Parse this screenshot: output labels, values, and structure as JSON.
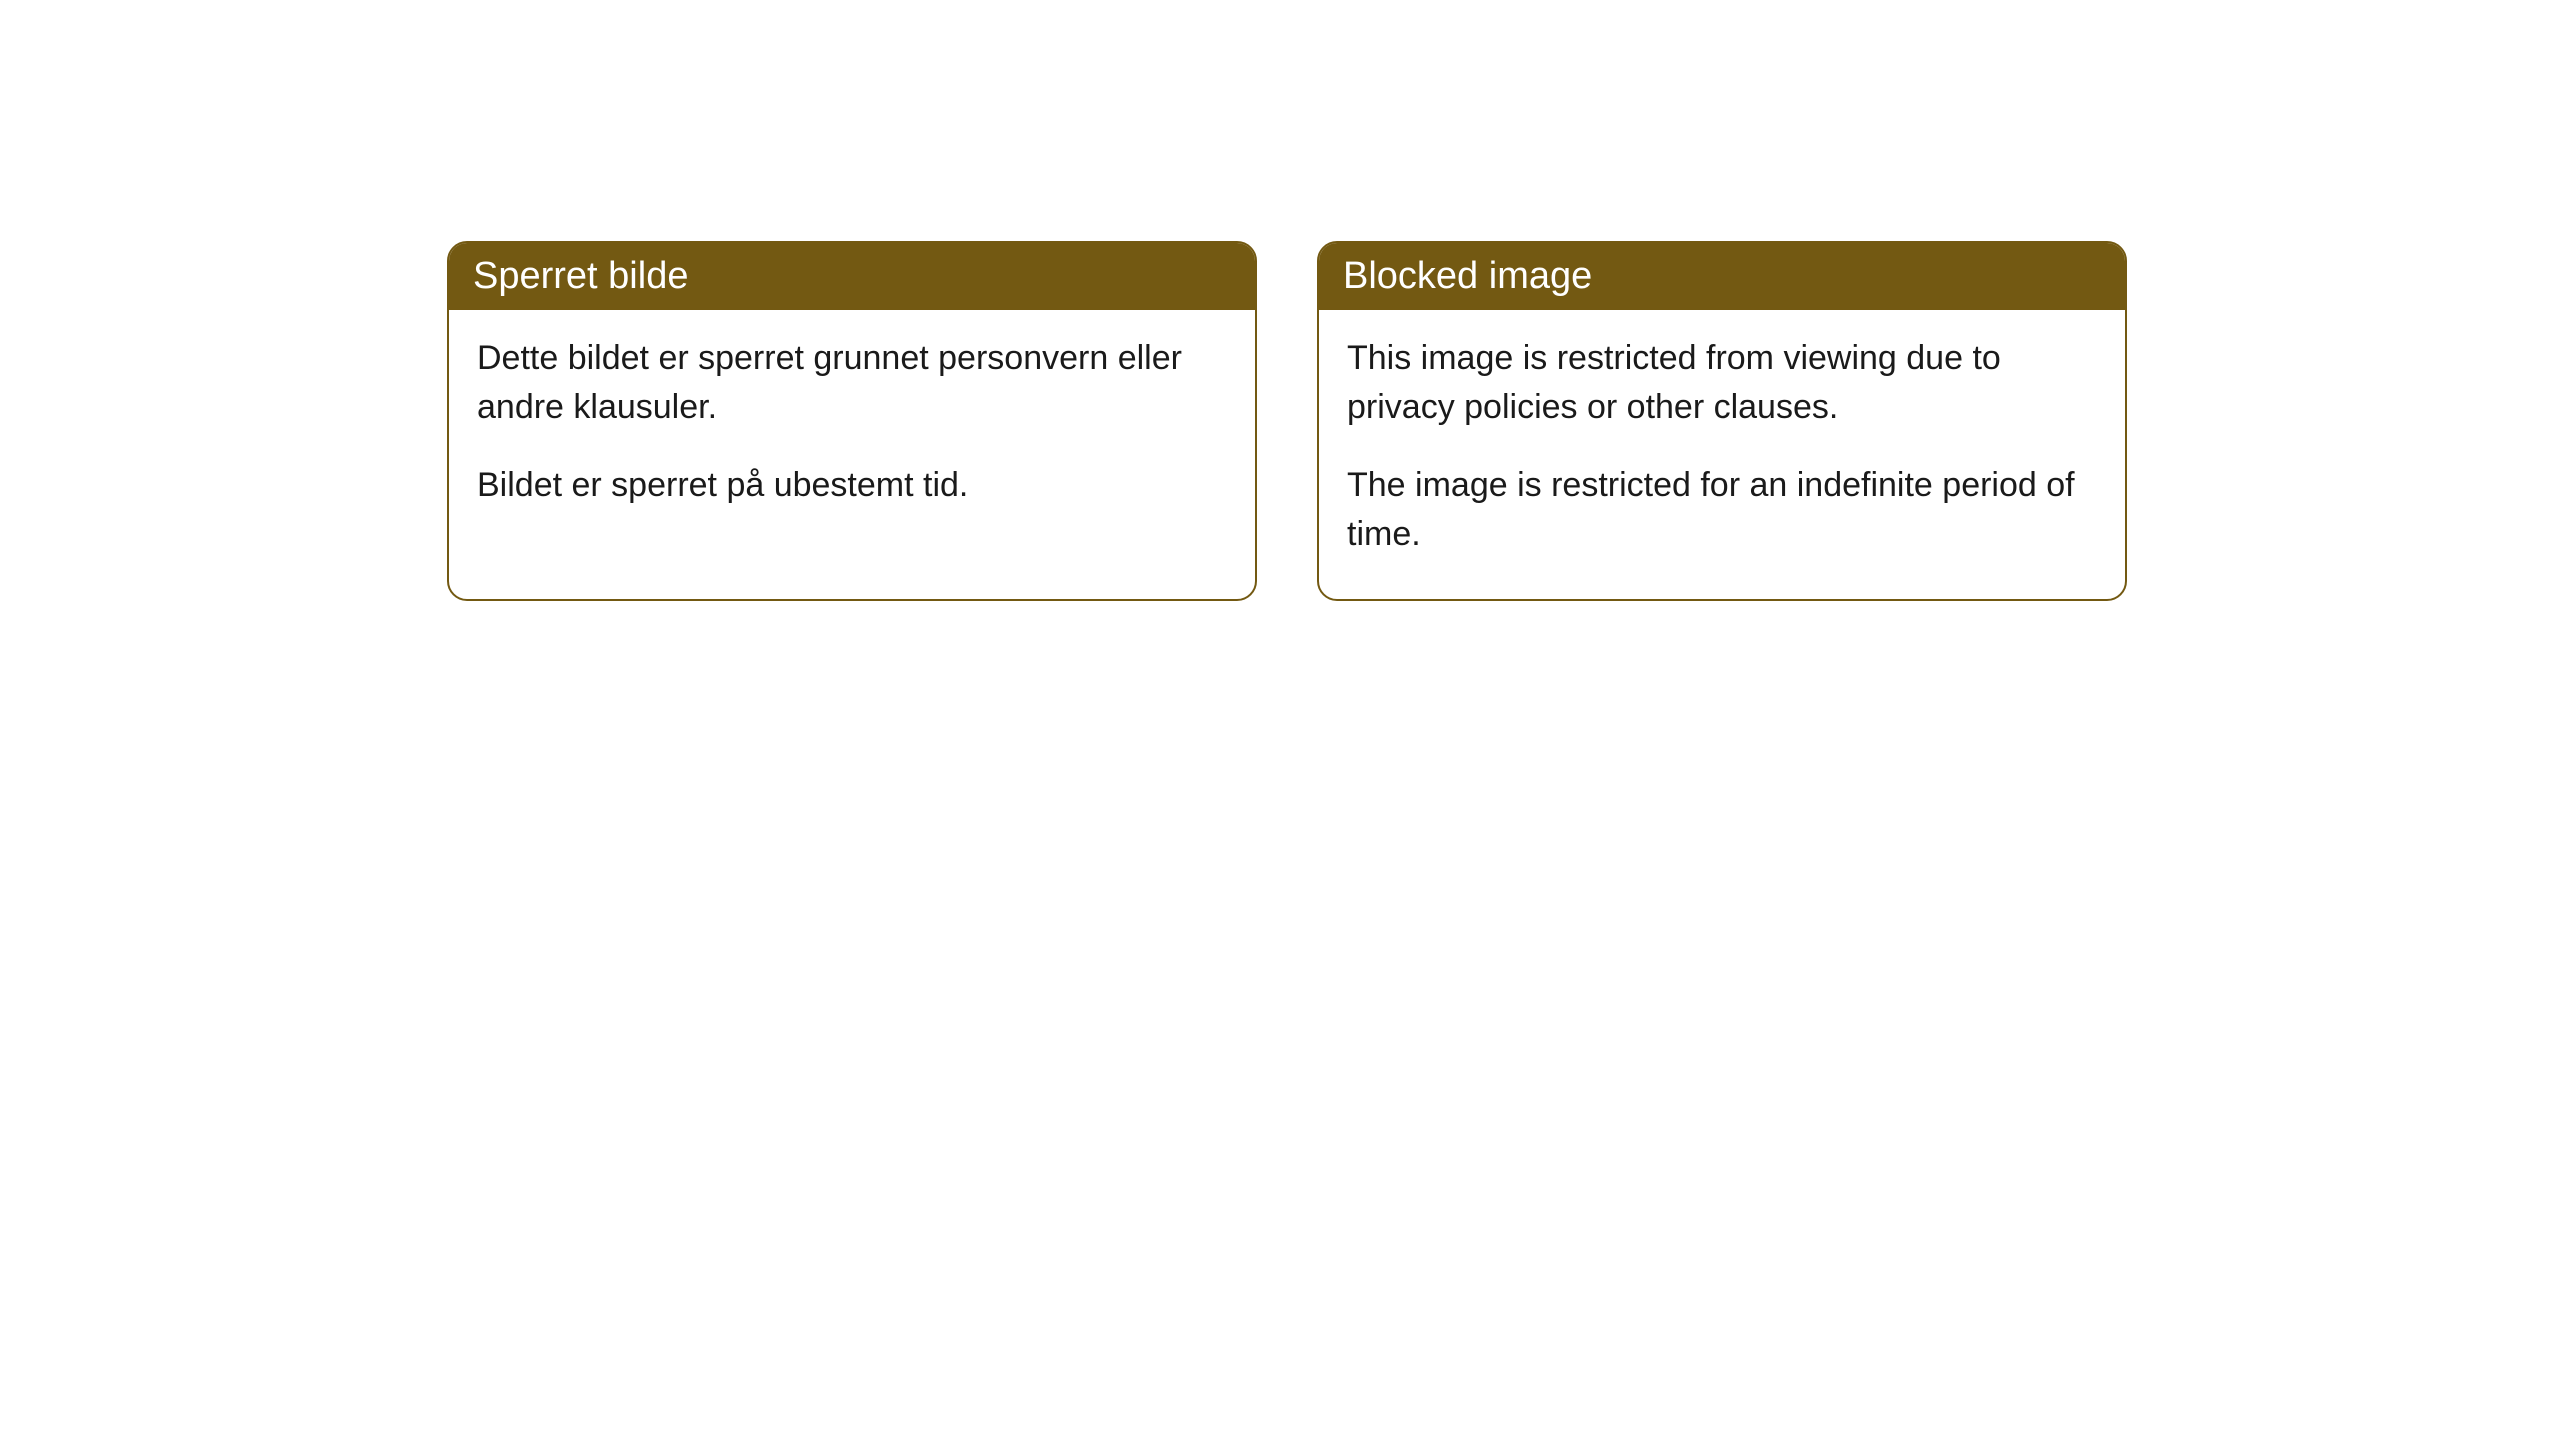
{
  "cards": [
    {
      "title": "Sperret bilde",
      "paragraph1": "Dette bildet er sperret grunnet personvern eller andre klausuler.",
      "paragraph2": "Bildet er sperret på ubestemt tid."
    },
    {
      "title": "Blocked image",
      "paragraph1": "This image is restricted from viewing due to privacy policies or other clauses.",
      "paragraph2": "The image is restricted for an indefinite period of time."
    }
  ],
  "styling": {
    "header_bg_color": "#735912",
    "header_text_color": "#ffffff",
    "border_color": "#735912",
    "body_bg_color": "#ffffff",
    "body_text_color": "#1a1a1a",
    "border_radius": 20,
    "header_fontsize": 38,
    "body_fontsize": 34
  }
}
